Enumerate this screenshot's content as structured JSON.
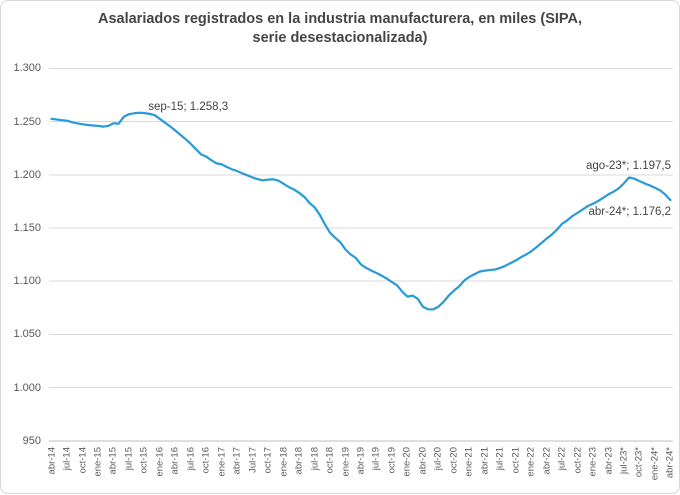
{
  "title": {
    "full": "Asalariados registrados en la industria manufacturera, en miles (SIPA, serie desestacionalizada)",
    "line1": "Asalariados registrados en la industria manufacturera, en miles (SIPA,",
    "line2": "serie desestacionalizada)"
  },
  "colors": {
    "line": "#2b9bd7",
    "grid": "#d9d9d9",
    "axis": "#bfbfbf",
    "axis_text": "#595959",
    "title_text": "#454545",
    "annotation_text": "#444444",
    "background": "#ffffff"
  },
  "y_axis": {
    "tick_labels": [
      "1.300",
      "1.250",
      "1.200",
      "1.150",
      "1.100",
      "1.050",
      "1.000",
      "950"
    ],
    "tick_values": [
      1300,
      1250,
      1200,
      1150,
      1100,
      1050,
      1000,
      950
    ],
    "min": 950,
    "max": 1300,
    "step": 50
  },
  "x_axis": {
    "label_every_n_points": 3,
    "labels": [
      "abr-14",
      "jul-14",
      "oct-14",
      "ene-15",
      "abr-15",
      "jul-15",
      "oct-15",
      "ene-16",
      "abr-16",
      "jul-16",
      "oct-16",
      "ene-17",
      "abr-17",
      "Jul-17",
      "oct-17",
      "ene-18",
      "abr-18",
      "jul-18",
      "oct-18",
      "ene-19",
      "abr-19",
      "jul-19",
      "oct-19",
      "ene-20",
      "abr-20",
      "jul-20",
      "oct-20",
      "ene-21",
      "abr-21",
      "jul-21",
      "oct-21",
      "ene-22",
      "abr-22",
      "jul-22",
      "oct-22",
      "ene-23",
      "abr-23",
      "jul-23*",
      "oct-23*",
      "ene-24*",
      "abr-24*"
    ]
  },
  "annotations": [
    {
      "text": "sep-15; 1.258,3",
      "month": "sep-15",
      "value": 1258.3,
      "point_index": 17
    },
    {
      "text": "ago-23*; 1.197,5",
      "month": "ago-23*",
      "value": 1197.5,
      "point_index": 112
    },
    {
      "text": "abr-24*; 1.176,2",
      "month": "abr-24*",
      "value": 1176.2,
      "point_index": 120
    }
  ],
  "chart_data": {
    "type": "line",
    "title": "Asalariados registrados en la industria manufacturera, en miles (SIPA, serie desestacionalizada)",
    "xlabel": "",
    "ylabel": "",
    "ylim": [
      950,
      1300
    ],
    "grid": true,
    "legend": false,
    "line_color": "#2b9bd7",
    "x": [
      "abr-14",
      "may-14",
      "jun-14",
      "jul-14",
      "ago-14",
      "sep-14",
      "oct-14",
      "nov-14",
      "dic-14",
      "ene-15",
      "feb-15",
      "mar-15",
      "abr-15",
      "may-15",
      "jun-15",
      "jul-15",
      "ago-15",
      "sep-15",
      "oct-15",
      "nov-15",
      "dic-15",
      "ene-16",
      "feb-16",
      "mar-16",
      "abr-16",
      "may-16",
      "jun-16",
      "jul-16",
      "ago-16",
      "sep-16",
      "oct-16",
      "nov-16",
      "dic-16",
      "ene-17",
      "feb-17",
      "mar-17",
      "abr-17",
      "may-17",
      "jun-17",
      "jul-17",
      "ago-17",
      "sep-17",
      "oct-17",
      "nov-17",
      "dic-17",
      "ene-18",
      "feb-18",
      "mar-18",
      "abr-18",
      "may-18",
      "jun-18",
      "jul-18",
      "ago-18",
      "sep-18",
      "oct-18",
      "nov-18",
      "dic-18",
      "ene-19",
      "feb-19",
      "mar-19",
      "abr-19",
      "may-19",
      "jun-19",
      "jul-19",
      "ago-19",
      "sep-19",
      "oct-19",
      "nov-19",
      "dic-19",
      "ene-20",
      "feb-20",
      "mar-20",
      "abr-20",
      "may-20",
      "jun-20",
      "jul-20",
      "ago-20",
      "sep-20",
      "oct-20",
      "nov-20",
      "dic-20",
      "ene-21",
      "feb-21",
      "mar-21",
      "abr-21",
      "may-21",
      "jun-21",
      "jul-21",
      "ago-21",
      "sep-21",
      "oct-21",
      "nov-21",
      "dic-21",
      "ene-22",
      "feb-22",
      "mar-22",
      "abr-22",
      "may-22",
      "jun-22",
      "jul-22",
      "ago-22",
      "sep-22",
      "oct-22",
      "nov-22",
      "dic-22",
      "ene-23",
      "feb-23",
      "mar-23",
      "abr-23",
      "may-23",
      "jun-23",
      "jul-23*",
      "ago-23*",
      "sep-23*",
      "oct-23*",
      "nov-23*",
      "dic-23*",
      "ene-24*",
      "feb-24*",
      "mar-24*",
      "abr-24*"
    ],
    "values": [
      1252.5,
      1252.0,
      1251.3,
      1250.8,
      1249.3,
      1248.3,
      1247.5,
      1246.8,
      1246.3,
      1246.0,
      1245.3,
      1246.0,
      1248.5,
      1248.0,
      1254.5,
      1257.0,
      1257.8,
      1258.3,
      1258.0,
      1257.2,
      1256.0,
      1252.5,
      1249.0,
      1245.5,
      1241.5,
      1237.5,
      1233.5,
      1229.0,
      1224.0,
      1219.2,
      1217.0,
      1213.6,
      1210.7,
      1209.8,
      1207.3,
      1205.1,
      1203.5,
      1201.3,
      1199.4,
      1197.5,
      1195.9,
      1194.7,
      1195.5,
      1195.8,
      1194.5,
      1191.5,
      1188.4,
      1186.2,
      1183.1,
      1179.3,
      1173.6,
      1169.5,
      1162.5,
      1153.5,
      1145.5,
      1140.8,
      1136.5,
      1129.8,
      1125.1,
      1121.9,
      1115.6,
      1112.5,
      1110.0,
      1107.7,
      1105.3,
      1102.4,
      1099.2,
      1096.1,
      1090.0,
      1085.5,
      1086.5,
      1083.5,
      1076.0,
      1073.7,
      1073.5,
      1076.0,
      1080.5,
      1086.5,
      1091.0,
      1095.0,
      1100.5,
      1104.0,
      1106.5,
      1109.0,
      1110.0,
      1110.5,
      1111.0,
      1112.5,
      1114.5,
      1117.0,
      1119.5,
      1122.5,
      1125.0,
      1128.0,
      1131.8,
      1135.9,
      1140.0,
      1143.8,
      1148.5,
      1154.0,
      1157.2,
      1161.2,
      1164.3,
      1167.5,
      1170.7,
      1172.8,
      1175.4,
      1178.5,
      1181.7,
      1184.2,
      1187.3,
      1192.0,
      1197.5,
      1196.3,
      1194.1,
      1191.9,
      1190.0,
      1187.8,
      1185.3,
      1181.5,
      1176.2
    ]
  }
}
